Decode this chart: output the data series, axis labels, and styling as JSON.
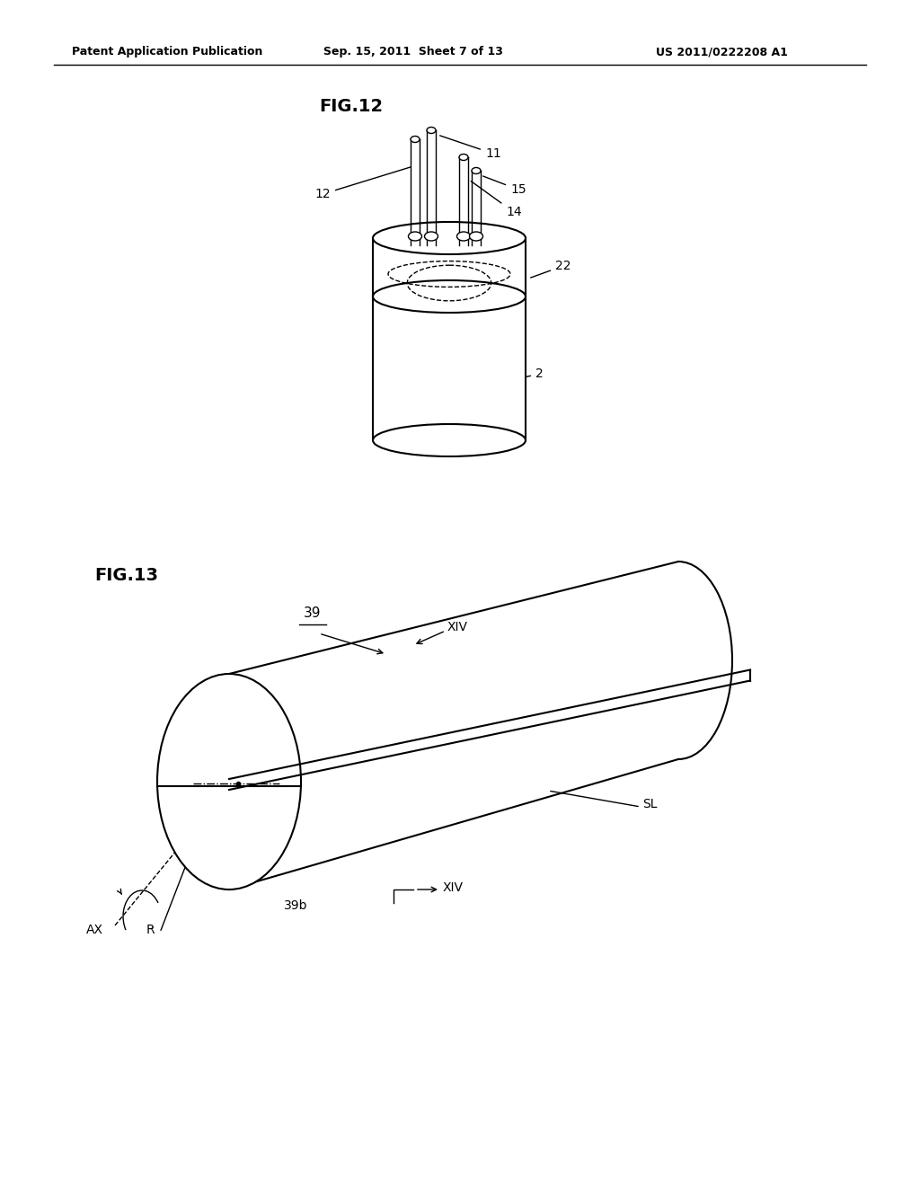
{
  "bg_color": "#ffffff",
  "line_color": "#000000",
  "fig_width": 10.24,
  "fig_height": 13.2,
  "header_text": "Patent Application Publication",
  "header_date": "Sep. 15, 2011  Sheet 7 of 13",
  "header_patent": "US 2011/0222208 A1",
  "fig12_label": "FIG.12",
  "fig13_label": "FIG.13"
}
